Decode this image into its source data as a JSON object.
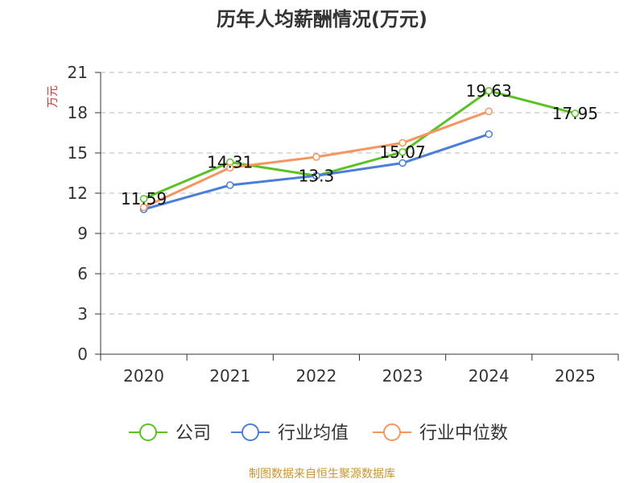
{
  "chart_data": {
    "type": "line",
    "title": "历年人均薪酬情况(万元)",
    "ylabel": "万元",
    "xlabel": "",
    "categories": [
      "2020",
      "2021",
      "2022",
      "2023",
      "2024",
      "2025"
    ],
    "ylim": [
      0,
      21
    ],
    "yticks": [
      0,
      3,
      6,
      9,
      12,
      15,
      18,
      21
    ],
    "grid": true,
    "legend_position": "bottom",
    "series": [
      {
        "name": "公司",
        "color": "#5bc226",
        "values": [
          11.59,
          14.31,
          13.3,
          15.07,
          19.63,
          17.95
        ],
        "labels": [
          "11.59",
          "14.31",
          "13.3",
          "15.07",
          "19.63",
          "17.95"
        ]
      },
      {
        "name": "行业均值",
        "color": "#4a7fd8",
        "values": [
          10.8,
          12.6,
          13.3,
          14.25,
          16.4,
          null
        ]
      },
      {
        "name": "行业中位数",
        "color": "#f59660",
        "values": [
          10.95,
          13.9,
          14.7,
          15.75,
          18.1,
          null
        ]
      }
    ]
  },
  "source": {
    "text": "制图数据来自恒生聚源数据库",
    "color": "#c8962e"
  },
  "ylabel_color": "#e03030"
}
